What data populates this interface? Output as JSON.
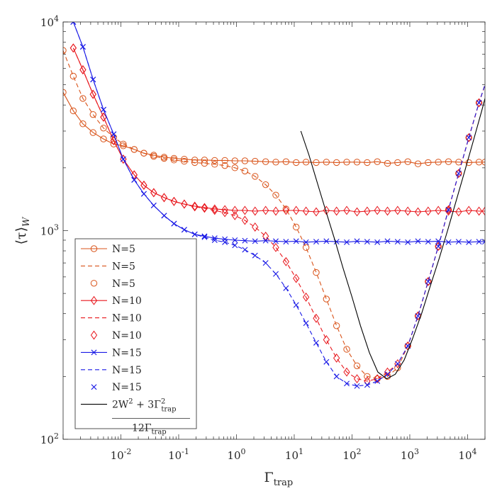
{
  "chart_data": {
    "type": "line",
    "title": "",
    "xlabel": "Γ",
    "xlabel_sub": "trap",
    "ylabel": "⟨τ⟩",
    "ylabel_sub": "W",
    "xscale": "log",
    "yscale": "log",
    "xlim": [
      0.001,
      20000
    ],
    "ylim": [
      100,
      10000
    ],
    "x_ticks": [
      {
        "value": 0.01,
        "base": "10",
        "exp": "-2"
      },
      {
        "value": 0.1,
        "base": "10",
        "exp": "-1"
      },
      {
        "value": 1,
        "base": "10",
        "exp": "0"
      },
      {
        "value": 10,
        "base": "10",
        "exp": "1"
      },
      {
        "value": 100,
        "base": "10",
        "exp": "2"
      },
      {
        "value": 1000,
        "base": "10",
        "exp": "3"
      },
      {
        "value": 10000,
        "base": "10",
        "exp": "4"
      }
    ],
    "y_ticks": [
      {
        "value": 100,
        "base": "10",
        "exp": "2"
      },
      {
        "value": 1000,
        "base": "10",
        "exp": "3"
      },
      {
        "value": 10000,
        "base": "10",
        "exp": "4"
      }
    ],
    "grid": false,
    "legend_position": "bottom-left",
    "colors": {
      "N5": "#d95319",
      "N10": "#e8151b",
      "N15": "#1a1ae6",
      "theory": "#000000"
    },
    "series": [
      {
        "name": "N=5",
        "style": "solid-circle",
        "color": "#d95319",
        "x": [
          0.001,
          0.0015,
          0.0022,
          0.0033,
          0.005,
          0.0075,
          0.011,
          0.017,
          0.025,
          0.037,
          0.056,
          0.083,
          0.125,
          0.19,
          0.28,
          0.42,
          0.63,
          0.94,
          1.4,
          2.1,
          3.2,
          4.8,
          7.2,
          10.8,
          16,
          24,
          36,
          54,
          81,
          122,
          183,
          274,
          411,
          616,
          924,
          1385,
          2077,
          3115,
          4672,
          7008,
          10512,
          15768,
          20000
        ],
        "y": [
          4600,
          3750,
          3250,
          2950,
          2750,
          2600,
          2550,
          2450,
          2350,
          2300,
          2250,
          2220,
          2200,
          2180,
          2180,
          2170,
          2170,
          2160,
          2160,
          2150,
          2140,
          2130,
          2140,
          2120,
          2130,
          2120,
          2130,
          2120,
          2130,
          2130,
          2120,
          2140,
          2100,
          2120,
          2140,
          2090,
          2120,
          2130,
          2140,
          2130,
          2120,
          2130,
          2130
        ]
      },
      {
        "name": "N=5",
        "style": "dashed",
        "color": "#d95319",
        "x": [
          0.001,
          0.0015,
          0.0022,
          0.0033,
          0.005,
          0.0075,
          0.011,
          0.017,
          0.025,
          0.037,
          0.056,
          0.083,
          0.125,
          0.19,
          0.28,
          0.42,
          0.63,
          0.94,
          1.4,
          2.1,
          3.2,
          4.8,
          7.2,
          10.8,
          16,
          24,
          36,
          54,
          81,
          122,
          183,
          274,
          411,
          616,
          924,
          1385,
          2077,
          3115,
          4672,
          7008,
          10512,
          15768,
          20000
        ],
        "y": [
          7300,
          5500,
          4300,
          3600,
          3100,
          2800,
          2600,
          2450,
          2350,
          2270,
          2220,
          2180,
          2150,
          2120,
          2100,
          2080,
          2050,
          2000,
          1930,
          1820,
          1660,
          1480,
          1270,
          1040,
          830,
          630,
          470,
          350,
          270,
          225,
          200,
          195,
          200,
          220,
          280,
          390,
          570,
          840,
          1260,
          1880,
          2790,
          4100,
          5000
        ]
      },
      {
        "name": "N=5",
        "style": "markers-circle",
        "color": "#d95319",
        "x": [
          0.001,
          0.0015,
          0.0022,
          0.0033,
          0.005,
          0.0075,
          0.011,
          0.017,
          0.025,
          0.037,
          0.056,
          0.083,
          0.125,
          0.19,
          0.28,
          0.42,
          0.63,
          0.94,
          1.4,
          2.1,
          3.2,
          4.8,
          7.2,
          10.8,
          16,
          24,
          36,
          54,
          81,
          122,
          183,
          274,
          411,
          616,
          924,
          1385,
          2077,
          3115,
          4672,
          7008,
          10512,
          15768
        ],
        "y": [
          7300,
          5500,
          4300,
          3600,
          3100,
          2800,
          2600,
          2450,
          2350,
          2270,
          2220,
          2180,
          2150,
          2120,
          2100,
          2080,
          2050,
          2000,
          1930,
          1820,
          1660,
          1480,
          1270,
          1040,
          830,
          630,
          470,
          350,
          270,
          225,
          200,
          195,
          200,
          220,
          280,
          390,
          570,
          840,
          1260,
          1880,
          2790,
          4100
        ]
      },
      {
        "name": "N=10",
        "style": "solid-diamond",
        "color": "#e8151b",
        "x": [
          0.0015,
          0.0022,
          0.0033,
          0.005,
          0.0075,
          0.011,
          0.017,
          0.025,
          0.037,
          0.056,
          0.083,
          0.125,
          0.19,
          0.28,
          0.42,
          0.63,
          0.94,
          1.4,
          2.1,
          3.2,
          4.8,
          7.2,
          10.8,
          16,
          24,
          36,
          54,
          81,
          122,
          183,
          274,
          411,
          616,
          924,
          1385,
          2077,
          3115,
          4672,
          7008,
          10512,
          15768,
          20000
        ],
        "y": [
          7500,
          5900,
          4500,
          3500,
          2700,
          2200,
          1850,
          1650,
          1520,
          1440,
          1380,
          1340,
          1310,
          1290,
          1270,
          1260,
          1250,
          1250,
          1240,
          1250,
          1240,
          1250,
          1250,
          1240,
          1230,
          1250,
          1240,
          1250,
          1230,
          1240,
          1250,
          1240,
          1250,
          1240,
          1230,
          1240,
          1250,
          1240,
          1230,
          1250,
          1240,
          1240
        ]
      },
      {
        "name": "N=10",
        "style": "dashed",
        "color": "#e8151b",
        "x": [
          0.0015,
          0.0022,
          0.0033,
          0.005,
          0.0075,
          0.011,
          0.017,
          0.025,
          0.037,
          0.056,
          0.083,
          0.125,
          0.19,
          0.28,
          0.42,
          0.63,
          0.94,
          1.4,
          2.1,
          3.2,
          4.8,
          7.2,
          10.8,
          16,
          24,
          36,
          54,
          81,
          122,
          183,
          274,
          411,
          616,
          924,
          1385,
          2077,
          3115,
          4672,
          7008,
          10512,
          15768,
          20000
        ],
        "y": [
          7500,
          5900,
          4500,
          3500,
          2700,
          2200,
          1850,
          1650,
          1520,
          1440,
          1380,
          1340,
          1300,
          1280,
          1250,
          1220,
          1180,
          1120,
          1040,
          940,
          830,
          710,
          590,
          480,
          380,
          300,
          245,
          210,
          195,
          190,
          195,
          210,
          230,
          280,
          390,
          570,
          840,
          1260,
          1880,
          2790,
          4100,
          5000
        ]
      },
      {
        "name": "N=10",
        "style": "markers-diamond",
        "color": "#e8151b",
        "x": [
          0.0015,
          0.0022,
          0.0033,
          0.005,
          0.0075,
          0.011,
          0.017,
          0.025,
          0.037,
          0.056,
          0.083,
          0.125,
          0.19,
          0.28,
          0.42,
          0.63,
          0.94,
          1.4,
          2.1,
          3.2,
          4.8,
          7.2,
          10.8,
          16,
          24,
          36,
          54,
          81,
          122,
          183,
          274,
          411,
          616,
          924,
          1385,
          2077,
          3115,
          4672,
          7008,
          10512,
          15768
        ],
        "y": [
          7500,
          5900,
          4500,
          3500,
          2700,
          2200,
          1850,
          1650,
          1520,
          1440,
          1380,
          1340,
          1300,
          1280,
          1250,
          1220,
          1180,
          1120,
          1040,
          940,
          830,
          710,
          590,
          480,
          380,
          300,
          245,
          210,
          195,
          190,
          195,
          210,
          230,
          280,
          390,
          570,
          840,
          1260,
          1880,
          2790,
          4100
        ]
      },
      {
        "name": "N=15",
        "style": "solid-x",
        "color": "#1a1ae6",
        "x": [
          0.0015,
          0.0022,
          0.0033,
          0.005,
          0.0075,
          0.011,
          0.017,
          0.025,
          0.037,
          0.056,
          0.083,
          0.125,
          0.19,
          0.28,
          0.42,
          0.63,
          0.94,
          1.4,
          2.1,
          3.2,
          4.8,
          7.2,
          10.8,
          16,
          24,
          36,
          54,
          81,
          122,
          183,
          274,
          411,
          616,
          924,
          1385,
          2077,
          3115,
          4672,
          7008,
          10512,
          15768,
          20000
        ],
        "y": [
          10000,
          7600,
          5300,
          3800,
          2900,
          2200,
          1750,
          1500,
          1320,
          1180,
          1080,
          1010,
          960,
          940,
          920,
          910,
          900,
          895,
          890,
          895,
          890,
          885,
          890,
          880,
          885,
          890,
          885,
          880,
          890,
          885,
          880,
          890,
          885,
          880,
          890,
          885,
          890,
          880,
          885,
          880,
          885,
          885
        ]
      },
      {
        "name": "N=15",
        "style": "dashed",
        "color": "#1a1ae6",
        "x": [
          0.0015,
          0.0022,
          0.0033,
          0.005,
          0.0075,
          0.011,
          0.017,
          0.025,
          0.037,
          0.056,
          0.083,
          0.125,
          0.19,
          0.28,
          0.42,
          0.63,
          0.94,
          1.4,
          2.1,
          3.2,
          4.8,
          7.2,
          10.8,
          16,
          24,
          36,
          54,
          81,
          122,
          183,
          274,
          411,
          616,
          924,
          1385,
          2077,
          3115,
          4672,
          7008,
          10512,
          15768,
          20000
        ],
        "y": [
          10000,
          7600,
          5300,
          3800,
          2900,
          2200,
          1750,
          1500,
          1320,
          1180,
          1080,
          1010,
          960,
          930,
          900,
          880,
          850,
          810,
          760,
          700,
          620,
          530,
          440,
          360,
          290,
          235,
          200,
          185,
          180,
          182,
          190,
          205,
          230,
          280,
          390,
          570,
          840,
          1260,
          1880,
          2790,
          4100,
          5000
        ]
      },
      {
        "name": "N=15",
        "style": "markers-x",
        "color": "#1a1ae6",
        "x": [
          0.0015,
          0.0022,
          0.0033,
          0.005,
          0.0075,
          0.011,
          0.017,
          0.025,
          0.037,
          0.056,
          0.083,
          0.125,
          0.19,
          0.28,
          0.42,
          0.63,
          0.94,
          1.4,
          2.1,
          3.2,
          4.8,
          7.2,
          10.8,
          16,
          24,
          36,
          54,
          81,
          122,
          183,
          274,
          411,
          616,
          924,
          1385,
          2077,
          3115,
          4672,
          7008,
          10512,
          15768
        ],
        "y": [
          10000,
          7600,
          5300,
          3800,
          2900,
          2200,
          1750,
          1500,
          1320,
          1180,
          1080,
          1010,
          960,
          930,
          900,
          880,
          850,
          810,
          760,
          700,
          620,
          530,
          440,
          360,
          290,
          235,
          200,
          185,
          180,
          182,
          190,
          205,
          230,
          280,
          390,
          570,
          840,
          1260,
          1880,
          2790,
          4100
        ]
      },
      {
        "name": "2W^2 + 3Γ_trap^2 / 12Γ_trap",
        "style": "solid",
        "color": "#000000",
        "x": [
          13,
          18,
          25,
          35,
          50,
          70,
          100,
          140,
          200,
          280,
          400,
          560,
          800,
          1100,
          1600,
          2200,
          3200,
          4500,
          6300,
          9000,
          12500,
          17500,
          20000
        ],
        "y": [
          3000,
          2300,
          1700,
          1250,
          910,
          660,
          480,
          350,
          260,
          210,
          195,
          205,
          240,
          300,
          400,
          530,
          730,
          1000,
          1380,
          1940,
          2680,
          3740,
          4300
        ]
      }
    ],
    "legend": [
      {
        "label": "N=5",
        "style": "solid-circle",
        "color": "#d95319"
      },
      {
        "label": "N=5",
        "style": "dashed",
        "color": "#d95319"
      },
      {
        "label": "N=5",
        "style": "markers-circle",
        "color": "#d95319"
      },
      {
        "label": "N=10",
        "style": "solid-diamond",
        "color": "#e8151b"
      },
      {
        "label": "N=10",
        "style": "dashed",
        "color": "#e8151b"
      },
      {
        "label": "N=10",
        "style": "markers-diamond",
        "color": "#e8151b"
      },
      {
        "label": "N=15",
        "style": "solid-x",
        "color": "#1a1ae6"
      },
      {
        "label": "N=15",
        "style": "dashed",
        "color": "#1a1ae6"
      },
      {
        "label": "N=15",
        "style": "markers-x",
        "color": "#1a1ae6"
      },
      {
        "label": "",
        "style": "solid",
        "color": "#000000",
        "formula": {
          "num_a": "2W",
          "num_a_sup": "2",
          "num_b": " + 3Γ",
          "num_b_sup": "2",
          "num_b_sub": "trap",
          "den": "12Γ",
          "den_sub": "trap"
        }
      }
    ]
  }
}
